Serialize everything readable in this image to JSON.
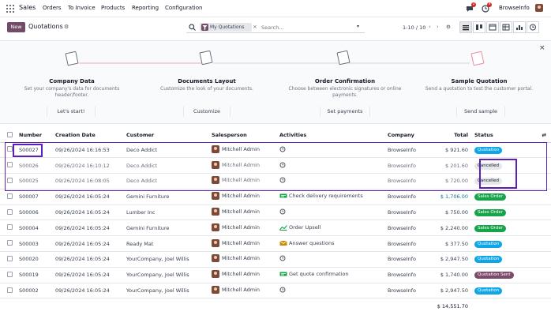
{
  "nav": {
    "brand": "Sales",
    "menu": [
      "Orders",
      "To Invoice",
      "Products",
      "Reporting",
      "Configuration"
    ],
    "chat_badge": "2",
    "activity_badge": "9",
    "company": "BrowseInfo"
  },
  "control": {
    "new_label": "New",
    "title": "Quotations",
    "facet_label": "My Quotations",
    "search_placeholder": "Search...",
    "pager": "1-10 / 10"
  },
  "onboarding": [
    {
      "title": "Company Data",
      "desc": "Set your company's data for documents header/footer.",
      "button": "Let's start!"
    },
    {
      "title": "Documents Layout",
      "desc": "Customize the look of your documents.",
      "button": "Customize"
    },
    {
      "title": "Order Confirmation",
      "desc": "Choose between electronic signatures or online payments.",
      "button": "Set payments"
    },
    {
      "title": "Sample Quotation",
      "desc": "Send a quotation to test the customer portal.",
      "button": "Send sample"
    }
  ],
  "table": {
    "columns": [
      "Number",
      "Creation Date",
      "Customer",
      "Salesperson",
      "Activities",
      "Company",
      "Total",
      "Status"
    ],
    "rows": [
      {
        "number": "S00027",
        "date": "09/26/2024 16:16:53",
        "customer": "Deco Addict",
        "salesperson": "Mitchell Admin",
        "activity": "",
        "activity_icon": "clock-icon",
        "company": "BrowseInfo",
        "total": "$ 921.60",
        "status": "Quotation",
        "status_type": "quotation"
      },
      {
        "number": "S00026",
        "date": "09/26/2024 16:10:12",
        "customer": "Deco Addict",
        "salesperson": "Mitchell Admin",
        "activity": "",
        "activity_icon": "clock-icon",
        "company": "BrowseInfo",
        "total": "$ 201.60",
        "status": "Cancelled",
        "status_type": "cancelled"
      },
      {
        "number": "S00025",
        "date": "09/26/2024 16:08:05",
        "customer": "Deco Addict",
        "salesperson": "Mitchell Admin",
        "activity": "",
        "activity_icon": "clock-icon",
        "company": "BrowseInfo",
        "total": "$ 720.00",
        "status": "Cancelled",
        "status_type": "cancelled"
      },
      {
        "number": "S00007",
        "date": "09/26/2024 16:05:24",
        "customer": "Gemini Furniture",
        "salesperson": "Mitchell Admin",
        "activity": "Check delivery requirements",
        "activity_icon": "truck-icon",
        "company": "BrowseInfo",
        "total": "$ 1,706.00",
        "status": "Sales Order",
        "status_type": "sales"
      },
      {
        "number": "S00006",
        "date": "09/26/2024 16:05:24",
        "customer": "Lumber Inc",
        "salesperson": "Mitchell Admin",
        "activity": "",
        "activity_icon": "clock-icon",
        "company": "BrowseInfo",
        "total": "$ 750.00",
        "status": "Sales Order",
        "status_type": "sales"
      },
      {
        "number": "S00004",
        "date": "09/26/2024 16:05:24",
        "customer": "Gemini Furniture",
        "salesperson": "Mitchell Admin",
        "activity": "Order Upsell",
        "activity_icon": "chart-icon",
        "company": "BrowseInfo",
        "total": "$ 2,240.00",
        "status": "Sales Order",
        "status_type": "sales"
      },
      {
        "number": "S00003",
        "date": "09/26/2024 16:05:24",
        "customer": "Ready Mat",
        "salesperson": "Mitchell Admin",
        "activity": "Answer questions",
        "activity_icon": "envelope-icon",
        "company": "BrowseInfo",
        "total": "$ 377.50",
        "status": "Quotation",
        "status_type": "quotation"
      },
      {
        "number": "S00020",
        "date": "09/26/2024 16:05:24",
        "customer": "YourCompany, Joel Willis",
        "salesperson": "Mitchell Admin",
        "activity": "",
        "activity_icon": "clock-icon",
        "company": "BrowseInfo",
        "total": "$ 2,947.50",
        "status": "Quotation",
        "status_type": "quotation"
      },
      {
        "number": "S00019",
        "date": "09/26/2024 16:05:24",
        "customer": "YourCompany, Joel Willis",
        "salesperson": "Mitchell Admin",
        "activity": "Get quote confirmation",
        "activity_icon": "truck-icon",
        "company": "BrowseInfo",
        "total": "$ 1,740.00",
        "status": "Quotation Sent",
        "status_type": "sent"
      },
      {
        "number": "S00002",
        "date": "09/26/2024 16:05:24",
        "customer": "YourCompany, Joel Willis",
        "salesperson": "Mitchell Admin",
        "activity": "",
        "activity_icon": "clock-icon",
        "company": "BrowseInfo",
        "total": "$ 2,947.50",
        "status": "Quotation",
        "status_type": "quotation"
      }
    ],
    "grand_total": "$ 14,551.70"
  },
  "colors": {
    "brand": "#714b67",
    "quotation": "#0ea5e9",
    "sales": "#16a34a",
    "cancelled": "#e5e7eb",
    "sent": "#7c4a6a",
    "highlight": "#5b21b6"
  }
}
